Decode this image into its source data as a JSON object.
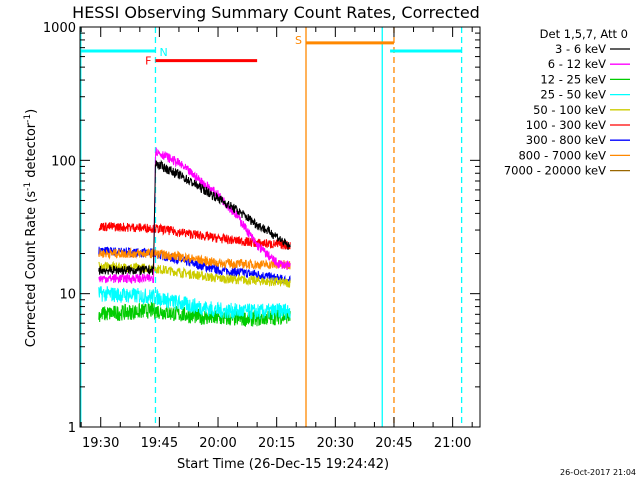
{
  "chart_data": {
    "type": "line",
    "title": "HESSI Observing Summary Count Rates, Corrected",
    "xlabel": "Start Time (26-Dec-15 19:24:42)",
    "ylabel_main": "Corrected Count Rate (s",
    "ylabel_sup1": "-1",
    "ylabel_mid": " detector",
    "ylabel_sup2": "-1",
    "ylabel_end": ")",
    "yscale": "log",
    "ylim": [
      1,
      1000
    ],
    "y_ticks": [
      {
        "value": 1,
        "label": "1"
      },
      {
        "value": 10,
        "label": "10"
      },
      {
        "value": 100,
        "label": "100"
      },
      {
        "value": 1000,
        "label": "1000"
      }
    ],
    "xlim_minutes": [
      1164.7,
      1267.0
    ],
    "x_ticks": [
      {
        "minutes": 1170,
        "label": "19:30"
      },
      {
        "minutes": 1185,
        "label": "19:45"
      },
      {
        "minutes": 1200,
        "label": "20:00"
      },
      {
        "minutes": 1215,
        "label": "20:15"
      },
      {
        "minutes": 1230,
        "label": "20:30"
      },
      {
        "minutes": 1245,
        "label": "20:45"
      },
      {
        "minutes": 1260,
        "label": "21:00"
      }
    ],
    "legend_header": "Det 1,5,7, Att 0",
    "legend_position": "right",
    "series": [
      {
        "name": "3 - 6 keV",
        "color": "#000000",
        "key": "s1"
      },
      {
        "name": "6 - 12 keV",
        "color": "#ff00ff",
        "key": "s2"
      },
      {
        "name": "12 - 25 keV",
        "color": "#00cc00",
        "key": "s3"
      },
      {
        "name": "25 - 50 keV",
        "color": "#00ffff",
        "key": "s4"
      },
      {
        "name": "50 - 100 keV",
        "color": "#cccc00",
        "key": "s5"
      },
      {
        "name": "100 - 300 keV",
        "color": "#ff0000",
        "key": "s6"
      },
      {
        "name": "300 - 800 keV",
        "color": "#0000ff",
        "key": "s7"
      },
      {
        "name": "800 - 7000 keV",
        "color": "#ff8800",
        "key": "s8"
      },
      {
        "name": "7000 - 20000 keV",
        "color": "#996600",
        "key": "s9"
      }
    ],
    "series_profiles": [
      {
        "key": "s7",
        "color": "#0000ff",
        "points": [
          [
            1169.5,
            21
          ],
          [
            1183.5,
            20
          ],
          [
            1190,
            18
          ],
          [
            1200,
            15
          ],
          [
            1210,
            14
          ],
          [
            1215,
            13
          ],
          [
            1218.5,
            12.5
          ]
        ]
      },
      {
        "key": "s5",
        "color": "#cccc00",
        "points": [
          [
            1169.5,
            16
          ],
          [
            1183.5,
            15.5
          ],
          [
            1190,
            14.5
          ],
          [
            1200,
            13
          ],
          [
            1210,
            12.5
          ],
          [
            1218.5,
            12
          ]
        ]
      },
      {
        "key": "s3",
        "color": "#00cc00",
        "points": [
          [
            1169.5,
            7
          ],
          [
            1183.5,
            7.5
          ],
          [
            1190,
            7
          ],
          [
            1200,
            6.5
          ],
          [
            1210,
            6.5
          ],
          [
            1218.5,
            6.8
          ]
        ]
      },
      {
        "key": "s4",
        "color": "#00ffff",
        "points": [
          [
            1169.5,
            10
          ],
          [
            1183.5,
            9.5
          ],
          [
            1190,
            8.5
          ],
          [
            1200,
            7.5
          ],
          [
            1210,
            7.3
          ],
          [
            1218.5,
            7.5
          ]
        ]
      },
      {
        "key": "s8",
        "color": "#ff8800",
        "points": [
          [
            1169.5,
            20
          ],
          [
            1183.5,
            20
          ],
          [
            1190,
            19
          ],
          [
            1200,
            17
          ],
          [
            1210,
            16.5
          ],
          [
            1218.5,
            16.5
          ]
        ]
      },
      {
        "key": "s6",
        "color": "#ff0000",
        "points": [
          [
            1169.5,
            32
          ],
          [
            1183.5,
            31
          ],
          [
            1190,
            29
          ],
          [
            1200,
            26
          ],
          [
            1210,
            24
          ],
          [
            1218.5,
            23
          ]
        ]
      },
      {
        "key": "s2",
        "color": "#ff00ff",
        "points": [
          [
            1169.5,
            13
          ],
          [
            1183.5,
            13
          ],
          [
            1184,
            118
          ],
          [
            1190,
            95
          ],
          [
            1200,
            55
          ],
          [
            1205,
            38
          ],
          [
            1210,
            23
          ],
          [
            1215,
            17
          ],
          [
            1218.5,
            16
          ]
        ]
      },
      {
        "key": "s1",
        "color": "#000000",
        "points": [
          [
            1169.5,
            15
          ],
          [
            1183.5,
            15
          ],
          [
            1184,
            95
          ],
          [
            1190,
            78
          ],
          [
            1200,
            52
          ],
          [
            1205,
            42
          ],
          [
            1210,
            33
          ],
          [
            1215,
            27
          ],
          [
            1218.5,
            22
          ]
        ]
      }
    ],
    "observing_flags": [
      {
        "label": "N",
        "color": "#00ffff",
        "segments": [
          [
            1164.7,
            1184.0
          ],
          [
            1244.0,
            1262.3
          ]
        ],
        "y": 660
      },
      {
        "label": "F",
        "color": "#ff0000",
        "segments": [
          [
            1184.0,
            1210.0
          ]
        ],
        "y": 560
      },
      {
        "label": "S",
        "color": "#ff8800",
        "segments": [
          [
            1222.5,
            1245.0
          ]
        ],
        "y": 760
      }
    ],
    "vertical_lines": [
      {
        "minutes": 1164.9,
        "color": "#00ffff",
        "style": "solid"
      },
      {
        "minutes": 1184.0,
        "color": "#00ffff",
        "style": "dashed"
      },
      {
        "minutes": 1222.5,
        "color": "#ff8800",
        "style": "solid"
      },
      {
        "minutes": 1242.0,
        "color": "#00ffff",
        "style": "solid"
      },
      {
        "minutes": 1245.0,
        "color": "#ff8800",
        "style": "dashed"
      },
      {
        "minutes": 1262.3,
        "color": "#00ffff",
        "style": "dashed"
      }
    ],
    "grid": false
  },
  "timestamp": "26-Oct-2017 21:04"
}
